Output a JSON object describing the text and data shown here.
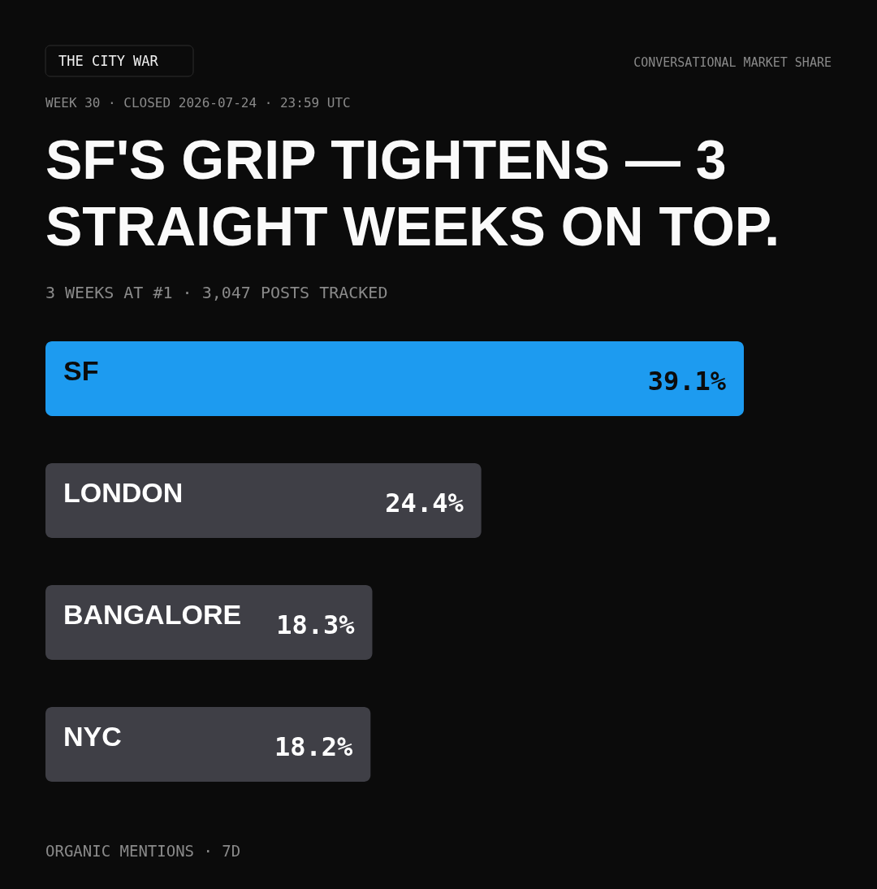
{
  "chart_data": {
    "type": "bar",
    "orientation": "horizontal",
    "title": "SF'S GRIP TIGHTENS — 3 STRAIGHT WEEKS ON TOP.",
    "subtitle": "3 WEEKS AT #1 · 3,047 POSTS TRACKED",
    "annotations": [
      "THE CITY WAR",
      "CONVERSATIONAL MARKET SHARE",
      "WEEK 30 · CLOSED 2026-07-24 · 23:59 UTC",
      "ORGANIC MENTIONS · 7D"
    ],
    "categories": [
      "SF",
      "LONDON",
      "BANGALORE",
      "NYC"
    ],
    "values": [
      39.1,
      24.4,
      18.3,
      18.2
    ],
    "colors": [
      "#1d9bf0",
      "#3f3f46",
      "#3f3f46",
      "#3f3f46"
    ],
    "value_labels": [
      "39.1%",
      "24.4%",
      "18.3%",
      "18.2%"
    ]
  }
}
